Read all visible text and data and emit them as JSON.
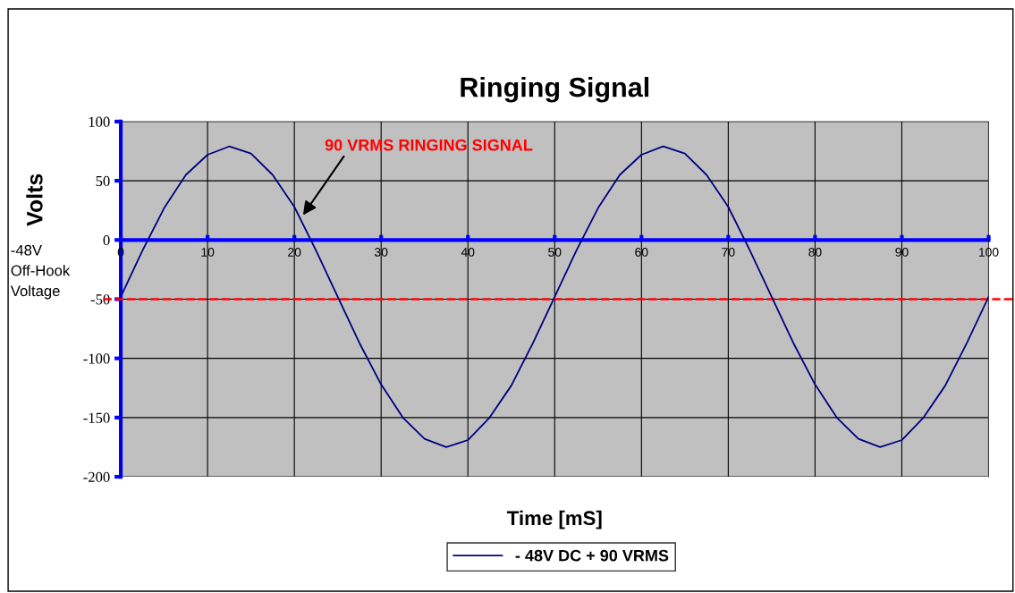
{
  "chart_data": {
    "type": "line",
    "title": "Ringing Signal",
    "xlabel": "Time [mS]",
    "ylabel": "Volts",
    "x": [
      0,
      2.5,
      5,
      7.5,
      10,
      12.5,
      15,
      17.5,
      20,
      22.5,
      25,
      27.5,
      30,
      32.5,
      35,
      37.5,
      40,
      42.5,
      45,
      47.5,
      50,
      52.5,
      55,
      57.5,
      60,
      62.5,
      65,
      67.5,
      70,
      72.5,
      75,
      77.5,
      80,
      82.5,
      85,
      87.5,
      90,
      92.5,
      95,
      97.5,
      100
    ],
    "series": [
      {
        "name": "- 48V DC + 90 VRMS",
        "color": "#000080",
        "values": [
          -48,
          -9,
          27,
          55,
          72,
          79,
          73,
          55,
          28,
          -9,
          -48,
          -87,
          -122,
          -150,
          -168,
          -175,
          -169,
          -150,
          -123,
          -87,
          -48,
          -9,
          27,
          55,
          72,
          79,
          73,
          55,
          28,
          -9,
          -48,
          -87,
          -122,
          -150,
          -168,
          -175,
          -169,
          -150,
          -123,
          -87,
          -48
        ]
      }
    ],
    "xlim": [
      0,
      100
    ],
    "xticks": [
      0,
      10,
      20,
      30,
      40,
      50,
      60,
      70,
      80,
      90,
      100
    ],
    "ylim": [
      -200,
      100
    ],
    "yticks": [
      -200,
      -150,
      -100,
      -50,
      0,
      50,
      100
    ],
    "grid": true,
    "legend": "bottom",
    "marker": "none",
    "line_style": "solid",
    "ref_lines": [
      {
        "axis": "y",
        "value": -50,
        "label": "-48V\nOff-Hook\nVoltage",
        "color": "#ff0000",
        "line_style": "dashed"
      }
    ],
    "annotations": [
      {
        "text": "90 VRMS RINGING SIGNAL",
        "x": 21,
        "y": 21
      }
    ]
  }
}
